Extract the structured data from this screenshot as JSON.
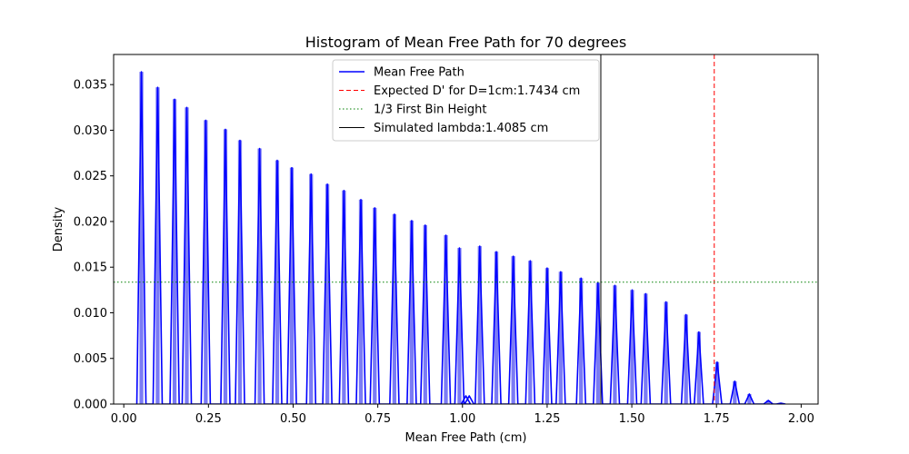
{
  "chart_data": {
    "type": "line",
    "title": "Histogram of Mean Free Path for 70 degrees",
    "xlabel": "Mean Free Path (cm)",
    "ylabel": "Density",
    "xlim": [
      -0.03,
      2.05
    ],
    "ylim": [
      0,
      0.0383
    ],
    "xticks": [
      {
        "v": 0.0,
        "label": "0.00"
      },
      {
        "v": 0.25,
        "label": "0.25"
      },
      {
        "v": 0.5,
        "label": "0.50"
      },
      {
        "v": 0.75,
        "label": "0.75"
      },
      {
        "v": 1.0,
        "label": "1.00"
      },
      {
        "v": 1.25,
        "label": "1.25"
      },
      {
        "v": 1.5,
        "label": "1.50"
      },
      {
        "v": 1.75,
        "label": "1.75"
      },
      {
        "v": 2.0,
        "label": "2.00"
      }
    ],
    "yticks": [
      {
        "v": 0.0,
        "label": "0.000"
      },
      {
        "v": 0.005,
        "label": "0.005"
      },
      {
        "v": 0.01,
        "label": "0.010"
      },
      {
        "v": 0.015,
        "label": "0.015"
      },
      {
        "v": 0.02,
        "label": "0.020"
      },
      {
        "v": 0.025,
        "label": "0.025"
      },
      {
        "v": 0.03,
        "label": "0.030"
      },
      {
        "v": 0.035,
        "label": "0.035"
      }
    ],
    "grid": false,
    "legend_position": "top-center",
    "histogram": {
      "color": "#7b7bf5",
      "peaks": [
        [
          0.052,
          0.0364
        ],
        [
          0.1,
          0.0347
        ],
        [
          0.15,
          0.0334
        ],
        [
          0.186,
          0.0325
        ],
        [
          0.242,
          0.0311
        ],
        [
          0.3,
          0.0301
        ],
        [
          0.343,
          0.0289
        ],
        [
          0.401,
          0.028
        ],
        [
          0.453,
          0.0267
        ],
        [
          0.496,
          0.0259
        ],
        [
          0.553,
          0.0252
        ],
        [
          0.601,
          0.0241
        ],
        [
          0.65,
          0.0234
        ],
        [
          0.7,
          0.0224
        ],
        [
          0.741,
          0.0215
        ],
        [
          0.799,
          0.0208
        ],
        [
          0.85,
          0.0201
        ],
        [
          0.89,
          0.0196
        ],
        [
          0.951,
          0.0185
        ],
        [
          0.991,
          0.0171
        ],
        [
          1.051,
          0.0173
        ],
        [
          1.1,
          0.0167
        ],
        [
          1.15,
          0.0162
        ],
        [
          1.2,
          0.0157
        ],
        [
          1.25,
          0.0149
        ],
        [
          1.29,
          0.0145
        ],
        [
          1.35,
          0.0138
        ],
        [
          1.4,
          0.0133
        ],
        [
          1.45,
          0.013
        ],
        [
          1.501,
          0.0125
        ],
        [
          1.541,
          0.0121
        ],
        [
          1.601,
          0.0112
        ],
        [
          1.66,
          0.0098
        ],
        [
          1.698,
          0.0079
        ],
        [
          1.752,
          0.0046
        ],
        [
          1.804,
          0.0025
        ],
        [
          1.847,
          0.0011
        ],
        [
          1.903,
          0.0004
        ],
        [
          1.94,
          0.0001
        ]
      ],
      "minor": [
        [
          1.01,
          0.0009
        ],
        [
          1.02,
          0.0009
        ]
      ]
    },
    "series": [
      {
        "name": "Mean Free Path",
        "color": "#0000ff",
        "style": "solid"
      }
    ],
    "reference_lines": [
      {
        "name": "Expected D' for D=1cm:1.7434 cm",
        "orientation": "vertical",
        "value": 1.7434,
        "color": "#ff0000",
        "style": "dashed"
      },
      {
        "name": "1/3 First Bin Height",
        "orientation": "horizontal",
        "value": 0.01335,
        "color": "#008000",
        "style": "dotted"
      },
      {
        "name": "Simulated lambda:1.4085 cm",
        "orientation": "vertical",
        "value": 1.4085,
        "color": "#000000",
        "style": "solid"
      }
    ]
  }
}
